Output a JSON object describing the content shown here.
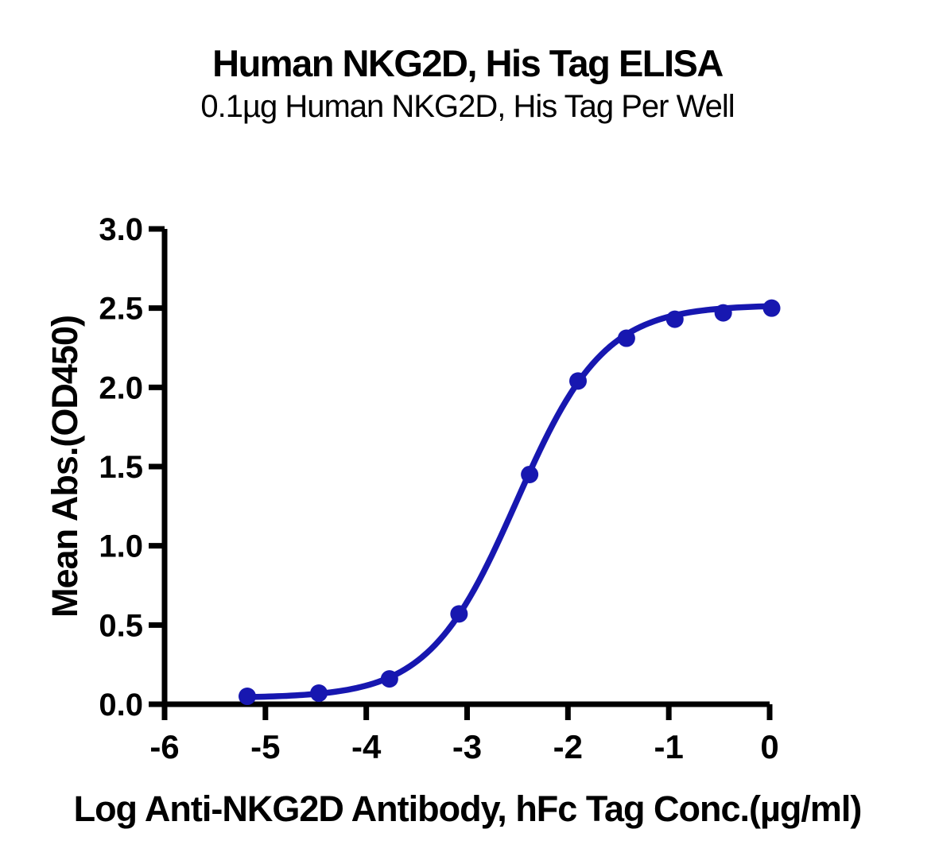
{
  "chart_data": {
    "type": "scatter",
    "title": "Human NKG2D, His Tag ELISA",
    "subtitle": "0.1µg Human NKG2D, His Tag Per Well",
    "xlabel": "Log Anti-NKG2D Antibody, hFc Tag Conc.(µg/ml)",
    "ylabel": "Mean Abs.(OD450)",
    "series": [
      {
        "name": "Anti-NKG2D Antibody, hFc Tag",
        "x": [
          -5.18,
          -4.47,
          -3.77,
          -3.08,
          -2.38,
          -1.9,
          -1.42,
          -0.94,
          -0.46,
          0.02
        ],
        "y": [
          0.05,
          0.07,
          0.16,
          0.57,
          1.45,
          2.04,
          2.31,
          2.43,
          2.47,
          2.5
        ],
        "marker": "circle",
        "color": "#1717b0",
        "fit": {
          "model": "4PL",
          "bottom": 0.04,
          "top": 2.52,
          "log_ec50": -2.51,
          "hill": 1.0
        }
      }
    ],
    "xlim": [
      -6,
      0
    ],
    "ylim": [
      0,
      3
    ],
    "x_tick_values": [
      -6,
      -5,
      -4,
      -3,
      -2,
      -1,
      0
    ],
    "x_tick_labels": [
      "-6",
      "-5",
      "-4",
      "-3",
      "-2",
      "-1",
      "0"
    ],
    "y_tick_values": [
      0,
      0.5,
      1,
      1.5,
      2,
      2.5,
      3
    ],
    "y_tick_labels": [
      "0.0",
      "0.5",
      "1.0",
      "1.5",
      "2.0",
      "2.5",
      "3.0"
    ],
    "grid": false,
    "legend": "none",
    "axis_color": "#000000",
    "background": "#ffffff"
  }
}
